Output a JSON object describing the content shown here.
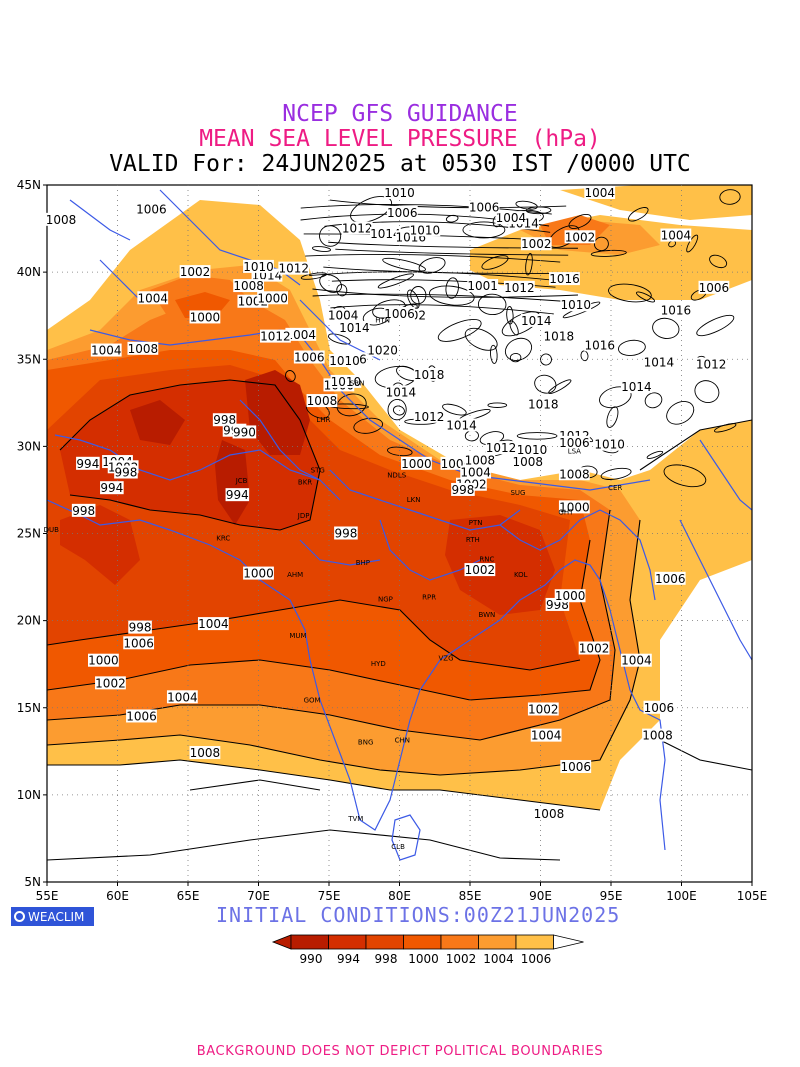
{
  "header": {
    "title": "NCEP GFS GUIDANCE",
    "subtitle": "MEAN SEA LEVEL PRESSURE (hPa)",
    "valid": "VALID For: 24JUN2025 at 0530 IST /0000 UTC"
  },
  "initial_conditions": "INITIAL CONDITIONS:00Z21JUN2025",
  "logo_text": "WEACLIM",
  "footer": "BACKGROUND DOES NOT DEPICT POLITICAL BOUNDARIES",
  "colors": {
    "c990": "#b81c00",
    "c994": "#d42e00",
    "c998": "#e24400",
    "c1000": "#f05800",
    "c1002": "#f87818",
    "c1004": "#fc9c30",
    "c1006": "#ffc048",
    "above": "#ffffff",
    "border": "#3c5ae6",
    "contour": "#000000"
  },
  "map": {
    "lon_range": [
      55,
      105
    ],
    "lat_range": [
      5,
      45
    ],
    "lon_ticks": [
      "55E",
      "60E",
      "65E",
      "70E",
      "75E",
      "80E",
      "85E",
      "90E",
      "95E",
      "100E",
      "105E"
    ],
    "lat_ticks": [
      "45N",
      "40N",
      "35N",
      "30N",
      "25N",
      "20N",
      "15N",
      "10N",
      "5N"
    ]
  },
  "legend": {
    "labels": [
      "990",
      "994",
      "998",
      "1000",
      "1002",
      "1004",
      "1006"
    ]
  },
  "contour_labels": [
    {
      "text": "1006",
      "lon": 61.5,
      "lat": 18.7
    },
    {
      "text": "1004",
      "lon": 59.2,
      "lat": 35.5
    },
    {
      "text": "1004",
      "lon": 66.8,
      "lat": 19.8
    },
    {
      "text": "1002",
      "lon": 65.5,
      "lat": 40.0
    },
    {
      "text": "1000",
      "lon": 66.2,
      "lat": 37.4
    },
    {
      "text": "998",
      "lon": 67.6,
      "lat": 31.5
    },
    {
      "text": "994",
      "lon": 68.3,
      "lat": 30.9
    },
    {
      "text": "990",
      "lon": 69.0,
      "lat": 30.8
    },
    {
      "text": "994",
      "lon": 57.9,
      "lat": 29.0
    },
    {
      "text": "998",
      "lon": 57.6,
      "lat": 26.3
    },
    {
      "text": "994",
      "lon": 68.5,
      "lat": 27.2
    },
    {
      "text": "998",
      "lon": 76.2,
      "lat": 25.0
    },
    {
      "text": "1000",
      "lon": 70.0,
      "lat": 22.7
    },
    {
      "text": "998",
      "lon": 61.6,
      "lat": 19.6
    },
    {
      "text": "1000",
      "lon": 59.0,
      "lat": 17.7
    },
    {
      "text": "1002",
      "lon": 59.5,
      "lat": 16.4
    },
    {
      "text": "1004",
      "lon": 64.6,
      "lat": 15.6
    },
    {
      "text": "1006",
      "lon": 61.7,
      "lat": 14.5
    },
    {
      "text": "1008",
      "lon": 66.2,
      "lat": 12.4
    },
    {
      "text": "1002",
      "lon": 85.7,
      "lat": 22.9
    },
    {
      "text": "998",
      "lon": 91.2,
      "lat": 20.9
    },
    {
      "text": "1000",
      "lon": 92.1,
      "lat": 21.4
    },
    {
      "text": "1002",
      "lon": 90.2,
      "lat": 14.9
    },
    {
      "text": "1004",
      "lon": 90.4,
      "lat": 13.4
    },
    {
      "text": "1006",
      "lon": 92.5,
      "lat": 11.6
    },
    {
      "text": "1008",
      "lon": 90.6,
      "lat": 8.9
    },
    {
      "text": "1000",
      "lon": 92.4,
      "lat": 26.5
    },
    {
      "text": "1002",
      "lon": 93.8,
      "lat": 18.4
    },
    {
      "text": "1004",
      "lon": 96.8,
      "lat": 17.7
    },
    {
      "text": "1006",
      "lon": 98.4,
      "lat": 15.0
    },
    {
      "text": "1008",
      "lon": 98.3,
      "lat": 13.4
    },
    {
      "text": "1006",
      "lon": 99.2,
      "lat": 22.4
    },
    {
      "text": "1008",
      "lon": 61.8,
      "lat": 35.6
    },
    {
      "text": "1006",
      "lon": 62.4,
      "lat": 43.6
    },
    {
      "text": "1004",
      "lon": 62.5,
      "lat": 38.5
    },
    {
      "text": "1002",
      "lon": 69.6,
      "lat": 38.3
    },
    {
      "text": "1000",
      "lon": 71.0,
      "lat": 38.5
    },
    {
      "text": "1004",
      "lon": 76.0,
      "lat": 37.5
    },
    {
      "text": "1002",
      "lon": 80.8,
      "lat": 37.5
    },
    {
      "text": "1004",
      "lon": 73.0,
      "lat": 36.4
    },
    {
      "text": "1006",
      "lon": 73.6,
      "lat": 35.1
    },
    {
      "text": "1000",
      "lon": 75.7,
      "lat": 33.5
    },
    {
      "text": "1008",
      "lon": 74.5,
      "lat": 32.6
    },
    {
      "text": "1010",
      "lon": 80.0,
      "lat": 44.8
    },
    {
      "text": "1006",
      "lon": 80.2,
      "lat": 43.4
    },
    {
      "text": "1012",
      "lon": 77.0,
      "lat": 42.5
    },
    {
      "text": "1014",
      "lon": 79.0,
      "lat": 42.2
    },
    {
      "text": "1016",
      "lon": 80.8,
      "lat": 42.0
    },
    {
      "text": "1010",
      "lon": 81.8,
      "lat": 42.4
    },
    {
      "text": "1014",
      "lon": 88.8,
      "lat": 42.8
    },
    {
      "text": "1004",
      "lon": 87.9,
      "lat": 43.1
    },
    {
      "text": "1006",
      "lon": 86.0,
      "lat": 43.7
    },
    {
      "text": "1004",
      "lon": 94.2,
      "lat": 44.8
    },
    {
      "text": "1002",
      "lon": 89.7,
      "lat": 41.6
    },
    {
      "text": "1002",
      "lon": 92.8,
      "lat": 42.0
    },
    {
      "text": "1004",
      "lon": 99.6,
      "lat": 42.1
    },
    {
      "text": "1006",
      "lon": 102.3,
      "lat": 39.1
    },
    {
      "text": "1001",
      "lon": 85.9,
      "lat": 39.2
    },
    {
      "text": "1012",
      "lon": 88.5,
      "lat": 39.1
    },
    {
      "text": "1016",
      "lon": 91.7,
      "lat": 39.6
    },
    {
      "text": "1010",
      "lon": 92.5,
      "lat": 38.1
    },
    {
      "text": "1016",
      "lon": 99.6,
      "lat": 37.8
    },
    {
      "text": "1014",
      "lon": 89.7,
      "lat": 37.2
    },
    {
      "text": "1018",
      "lon": 91.3,
      "lat": 36.3
    },
    {
      "text": "1016",
      "lon": 94.2,
      "lat": 35.8
    },
    {
      "text": "1014",
      "lon": 98.4,
      "lat": 34.8
    },
    {
      "text": "1012",
      "lon": 102.1,
      "lat": 34.7
    },
    {
      "text": "1020",
      "lon": 78.8,
      "lat": 35.5
    },
    {
      "text": "1018",
      "lon": 82.1,
      "lat": 34.1
    },
    {
      "text": "1006",
      "lon": 80.0,
      "lat": 37.6
    },
    {
      "text": "1016",
      "lon": 76.6,
      "lat": 35.0
    },
    {
      "text": "1014",
      "lon": 76.8,
      "lat": 36.8
    },
    {
      "text": "1010",
      "lon": 76.2,
      "lat": 33.7
    },
    {
      "text": "1014",
      "lon": 80.1,
      "lat": 33.1
    },
    {
      "text": "1012",
      "lon": 82.1,
      "lat": 31.7
    },
    {
      "text": "1014",
      "lon": 84.4,
      "lat": 31.2
    },
    {
      "text": "1018",
      "lon": 90.2,
      "lat": 32.4
    },
    {
      "text": "1014",
      "lon": 96.8,
      "lat": 33.4
    },
    {
      "text": "1012",
      "lon": 92.4,
      "lat": 30.6
    },
    {
      "text": "1010",
      "lon": 94.9,
      "lat": 30.1
    },
    {
      "text": "1012",
      "lon": 87.2,
      "lat": 29.9
    },
    {
      "text": "1010",
      "lon": 89.4,
      "lat": 29.8
    },
    {
      "text": "1008",
      "lon": 89.1,
      "lat": 29.1
    },
    {
      "text": "1006",
      "lon": 84.0,
      "lat": 29.0
    },
    {
      "text": "1008",
      "lon": 85.7,
      "lat": 29.2
    },
    {
      "text": "1002",
      "lon": 85.1,
      "lat": 27.8
    },
    {
      "text": "998",
      "lon": 84.5,
      "lat": 27.5
    },
    {
      "text": "1004",
      "lon": 85.4,
      "lat": 28.5
    },
    {
      "text": "1000",
      "lon": 81.2,
      "lat": 29.0
    },
    {
      "text": "1006",
      "lon": 92.4,
      "lat": 30.2
    },
    {
      "text": "1008",
      "lon": 92.4,
      "lat": 28.4
    },
    {
      "text": "1010",
      "lon": 76.1,
      "lat": 34.9
    },
    {
      "text": "1012",
      "lon": 71.2,
      "lat": 36.3
    },
    {
      "text": "1014",
      "lon": 70.6,
      "lat": 39.8
    },
    {
      "text": "1012",
      "lon": 72.5,
      "lat": 40.2
    },
    {
      "text": "1010",
      "lon": 70.0,
      "lat": 40.3
    },
    {
      "text": "1008",
      "lon": 69.3,
      "lat": 39.2
    },
    {
      "text": "1008",
      "lon": 55.0,
      "lat": 43.0
    },
    {
      "text": "1004",
      "lon": 60.0,
      "lat": 29.1
    },
    {
      "text": "1002",
      "lon": 60.4,
      "lat": 28.8
    },
    {
      "text": "998",
      "lon": 60.6,
      "lat": 28.5
    },
    {
      "text": "994",
      "lon": 59.6,
      "lat": 27.6
    }
  ],
  "city_labels": [
    {
      "text": "HTN",
      "lon": 78.8,
      "lat": 37.1
    },
    {
      "text": "LHR",
      "lon": 74.6,
      "lat": 31.4
    },
    {
      "text": "SRN",
      "lon": 77.0,
      "lat": 33.5
    },
    {
      "text": "STG",
      "lon": 74.2,
      "lat": 28.5
    },
    {
      "text": "NDLS",
      "lon": 79.8,
      "lat": 28.2
    },
    {
      "text": "BKR",
      "lon": 73.3,
      "lat": 27.8
    },
    {
      "text": "JCB",
      "lon": 68.8,
      "lat": 27.9
    },
    {
      "text": "JDP",
      "lon": 73.2,
      "lat": 25.9
    },
    {
      "text": "KRC",
      "lon": 67.5,
      "lat": 24.6
    },
    {
      "text": "DUB",
      "lon": 55.3,
      "lat": 25.1
    },
    {
      "text": "AHM",
      "lon": 72.6,
      "lat": 22.5
    },
    {
      "text": "BHP",
      "lon": 77.4,
      "lat": 23.2
    },
    {
      "text": "LKN",
      "lon": 81.0,
      "lat": 26.8
    },
    {
      "text": "PTN",
      "lon": 85.4,
      "lat": 25.5
    },
    {
      "text": "RTH",
      "lon": 85.2,
      "lat": 24.5
    },
    {
      "text": "RNC",
      "lon": 86.2,
      "lat": 23.4
    },
    {
      "text": "RPR",
      "lon": 82.1,
      "lat": 21.2
    },
    {
      "text": "NGP",
      "lon": 79.0,
      "lat": 21.1
    },
    {
      "text": "KOL",
      "lon": 88.6,
      "lat": 22.5
    },
    {
      "text": "BWN",
      "lon": 86.2,
      "lat": 20.2
    },
    {
      "text": "GHT",
      "lon": 91.8,
      "lat": 26.1
    },
    {
      "text": "CER",
      "lon": 95.3,
      "lat": 27.5
    },
    {
      "text": "SUG",
      "lon": 88.4,
      "lat": 27.2
    },
    {
      "text": "LSA",
      "lon": 92.4,
      "lat": 29.6
    },
    {
      "text": "MUM",
      "lon": 72.8,
      "lat": 19.0
    },
    {
      "text": "HYD",
      "lon": 78.5,
      "lat": 17.4
    },
    {
      "text": "VZG",
      "lon": 83.3,
      "lat": 17.7
    },
    {
      "text": "GOM",
      "lon": 73.8,
      "lat": 15.3
    },
    {
      "text": "BNG",
      "lon": 77.6,
      "lat": 12.9
    },
    {
      "text": "CHN",
      "lon": 80.2,
      "lat": 13.0
    },
    {
      "text": "TVM",
      "lon": 76.9,
      "lat": 8.5
    },
    {
      "text": "CLB",
      "lon": 79.9,
      "lat": 6.9
    }
  ]
}
